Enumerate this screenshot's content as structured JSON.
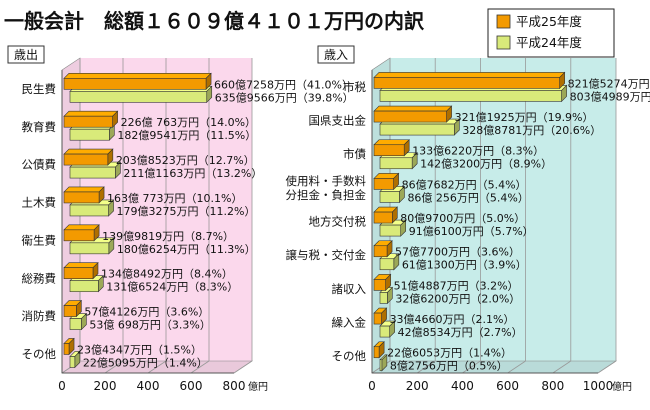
{
  "title": "一般会計　総額１６０９億４１０１万円の内訳",
  "legend": [
    {
      "name": "平成25年度",
      "color": "#f39a00"
    },
    {
      "name": "平成24年度",
      "color": "#d9ea7a"
    }
  ],
  "chart_data": [
    {
      "type": "bar",
      "orientation": "horizontal",
      "panel_label": "歳出",
      "background": "#fbd8ec",
      "unit": "億円",
      "xlim": [
        0,
        800
      ],
      "ticks": [
        "0",
        "200",
        "400",
        "600",
        "800"
      ],
      "categories": [
        "民生費",
        "教育費",
        "公債費",
        "土木費",
        "衛生費",
        "総務費",
        "消防費",
        "その他"
      ],
      "series": [
        {
          "name": "平成25年度",
          "values": [
            660.73,
            226.08,
            203.85,
            163.08,
            139.98,
            134.85,
            57.41,
            23.43
          ],
          "labels": [
            "660億7258万円（41.0%）",
            "226億 763万円（14.0%）",
            "203億8523万円（12.7%）",
            "163億 773万円（10.1%）",
            "139億9819万円（8.7%）",
            "134億8492万円（8.4%）",
            "57億4126万円（3.6%）",
            "23億4347万円（1.5%）"
          ]
        },
        {
          "name": "平成24年度",
          "values": [
            635.96,
            182.95,
            211.12,
            179.33,
            180.63,
            131.65,
            53.07,
            22.51
          ],
          "labels": [
            "635億9566万円（39.8%）",
            "182億9541万円（11.5%）",
            "211億1163万円（13.2%）",
            "179億3275万円（11.2%）",
            "180億6254万円（11.3%）",
            "131億6524万円（8.3%）",
            "53億 698万円（3.3%）",
            "22億5095万円（1.4%）"
          ]
        }
      ]
    },
    {
      "type": "bar",
      "orientation": "horizontal",
      "panel_label": "歳入",
      "background": "#c7ece9",
      "unit": "億円",
      "xlim": [
        0,
        1000
      ],
      "ticks": [
        "0",
        "200",
        "400",
        "600",
        "800",
        "1000"
      ],
      "categories": [
        "市税",
        "国県支出金",
        "市債",
        "使用料・手数料\n分担金・負担金",
        "地方交付税",
        "譲与税・交付金",
        "諸収入",
        "繰入金",
        "その他"
      ],
      "series": [
        {
          "name": "平成25年度",
          "values": [
            821.53,
            321.19,
            133.62,
            86.77,
            80.97,
            57.77,
            51.49,
            33.47,
            22.61
          ],
          "labels": [
            "821億5274万円（51.1%）",
            "321億1925万円（19.9%）",
            "133億6220万円（8.3%）",
            "86億7682万円（5.4%）",
            "80億9700万円（5.0%）",
            "57億7700万円（3.6%）",
            "51億4887万円（3.2%）",
            "33億4660万円（2.1%）",
            "22億6053万円（1.4%）"
          ]
        },
        {
          "name": "平成24年度",
          "values": [
            803.5,
            328.88,
            142.32,
            86.03,
            91.61,
            61.13,
            32.62,
            42.85,
            8.28
          ],
          "labels": [
            "803億4989万円（50.3%）",
            "328億8781万円（20.6%）",
            "142億3200万円（8.9%）",
            "86億 256万円（5.4%）",
            "91億6100万円（5.7%）",
            "61億1300万円（3.9%）",
            "32億6200万円（2.0%）",
            "42億8534万円（2.7%）",
            "8億2756万円（0.5%）"
          ]
        }
      ]
    }
  ]
}
